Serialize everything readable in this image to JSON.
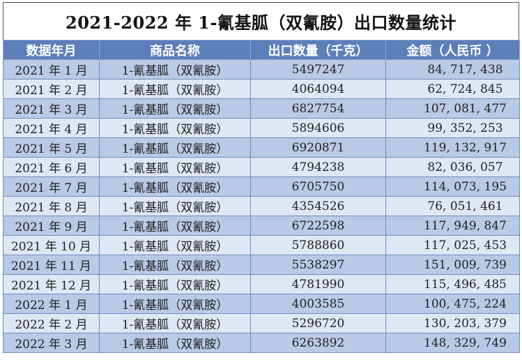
{
  "title": "2021-2022 年 1-氰基胍（双氰胺）出口数量统计",
  "headers": [
    "数据年月",
    "商品名称",
    "出口数量（千克）",
    "金额（人民币 ）"
  ],
  "colors": {
    "header_bg": "#5c7fba",
    "row_odd": "#b8cae6",
    "row_even": "#dfe7f4",
    "border": "#6e8cc0"
  },
  "rows": [
    [
      "2021 年 1 月",
      "1-氰基胍（双氰胺）",
      "5497247",
      "84, 717, 438"
    ],
    [
      "2021 年 2 月",
      "1-氰基胍（双氰胺）",
      "4064094",
      "62, 724, 845"
    ],
    [
      "2021 年 3 月",
      "1-氰基胍（双氰胺）",
      "6827754",
      "107, 081, 477"
    ],
    [
      "2021 年 4 月",
      "1-氰基胍（双氰胺）",
      "5894606",
      "99, 352, 253"
    ],
    [
      "2021 年 5 月",
      "1-氰基胍（双氰胺）",
      "6920871",
      "119, 132, 917"
    ],
    [
      "2021 年 6 月",
      "1-氰基胍（双氰胺）",
      "4794238",
      "82, 036, 057"
    ],
    [
      "2021 年 7 月",
      "1-氰基胍（双氰胺）",
      "6705750",
      "114, 073, 195"
    ],
    [
      "2021 年 8 月",
      "1-氰基胍（双氰胺）",
      "4354526",
      "76, 051, 461"
    ],
    [
      "2021 年 9 月",
      "1-氰基胍（双氰胺）",
      "6722598",
      "117, 949, 847"
    ],
    [
      "2021 年 10 月",
      "1-氰基胍（双氰胺）",
      "5788860",
      "117, 025, 453"
    ],
    [
      "2021 年 11 月",
      "1-氰基胍（双氰胺）",
      "5538297",
      "151, 009, 739"
    ],
    [
      "2021 年 12 月",
      "1-氰基胍（双氰胺）",
      "4781990",
      "115, 496, 485"
    ],
    [
      "2022 年 1 月",
      "1-氰基胍（双氰胺）",
      "4003585",
      "100, 475, 224"
    ],
    [
      "2022 年 2 月",
      "1-氰基胍（双氰胺）",
      "5296720",
      "130, 203, 379"
    ],
    [
      "2022 年 3 月",
      "1-氰基胍（双氰胺）",
      "6263892",
      "148, 329, 749"
    ]
  ]
}
